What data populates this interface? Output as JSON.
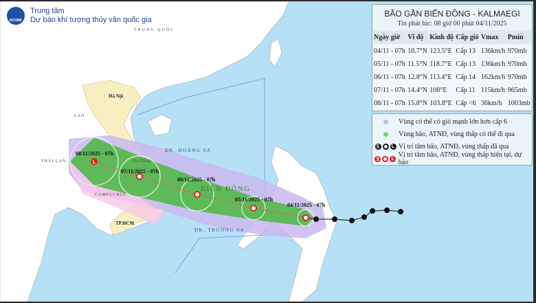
{
  "header": {
    "logo_text": "NCHMF",
    "org_line1": "Trung tâm",
    "org_line2": "Dự báo khí tượng thủy văn quốc gia"
  },
  "panel": {
    "title": "BÃO GẦN BIỂN ĐÔNG - KALMAEGI",
    "issued": "Tin phát lúc: 08 giờ 00 phút 04/11/2025",
    "columns": [
      "Ngày giờ",
      "Vĩ độ",
      "Kinh độ",
      "Cấp gió",
      "Vmax",
      "Pmin"
    ],
    "rows": [
      [
        "04/11 - 07h",
        "10.7°N",
        "123.5°E",
        "Cấp 13",
        "136km/h",
        "970mb"
      ],
      [
        "05/11 - 07h",
        "11.5°N",
        "118.7°E",
        "Cấp 13",
        "136km/h",
        "970mb"
      ],
      [
        "06/11 - 07h",
        "12.8°N",
        "113.4°E",
        "Cấp 14",
        "162km/h",
        "970mb"
      ],
      [
        "07/11 - 07h",
        "14.4°N",
        "108°E",
        "Cấp 11",
        "115km/h",
        "965mb"
      ],
      [
        "08/11 - 07h",
        "15.8°N",
        "103.8°E",
        "Cấp <6",
        "36km/h",
        "1003mb"
      ]
    ]
  },
  "legend": [
    {
      "text": "Vùng có thể có gió mạnh lớn hơn cấp 6",
      "color": "#c9b8ee"
    },
    {
      "text": "Vùng bão, ATNĐ, vùng thấp có thể đi qua",
      "color": "#7bd86a"
    },
    {
      "text": "Vị trí tâm bão, ATNĐ, vùng thấp đã qua",
      "color": "#111111"
    },
    {
      "text": "Vị trí tâm bão, ATNĐ, vùng thấp hiện tại, dự báo",
      "color": "#e02020"
    }
  ],
  "map": {
    "places": [
      "TRUNG QUỐC",
      "LÀO",
      "THÁI LAN",
      "CAMPUCHIA",
      "Hà Nội",
      "Đà Nẵng",
      "TP.HCM",
      "ĐK. HOÀNG SA",
      "ĐK. TRƯỜNG SA",
      "BIỂN ĐÔNG"
    ],
    "forecast_labels": [
      "04/11/2025 - 07h",
      "05/11/2025 - 07h",
      "06/11/2025 - 07h",
      "07/11/2025 - 07h",
      "08/11/2025 - 07h"
    ],
    "colors": {
      "sea": "#b5e0f5",
      "land": "#ffffff",
      "vietnam": "#f7efc2",
      "wind_zone": "#c9b8ee",
      "storm_zone": "#52b848",
      "track": "#e02020"
    }
  }
}
